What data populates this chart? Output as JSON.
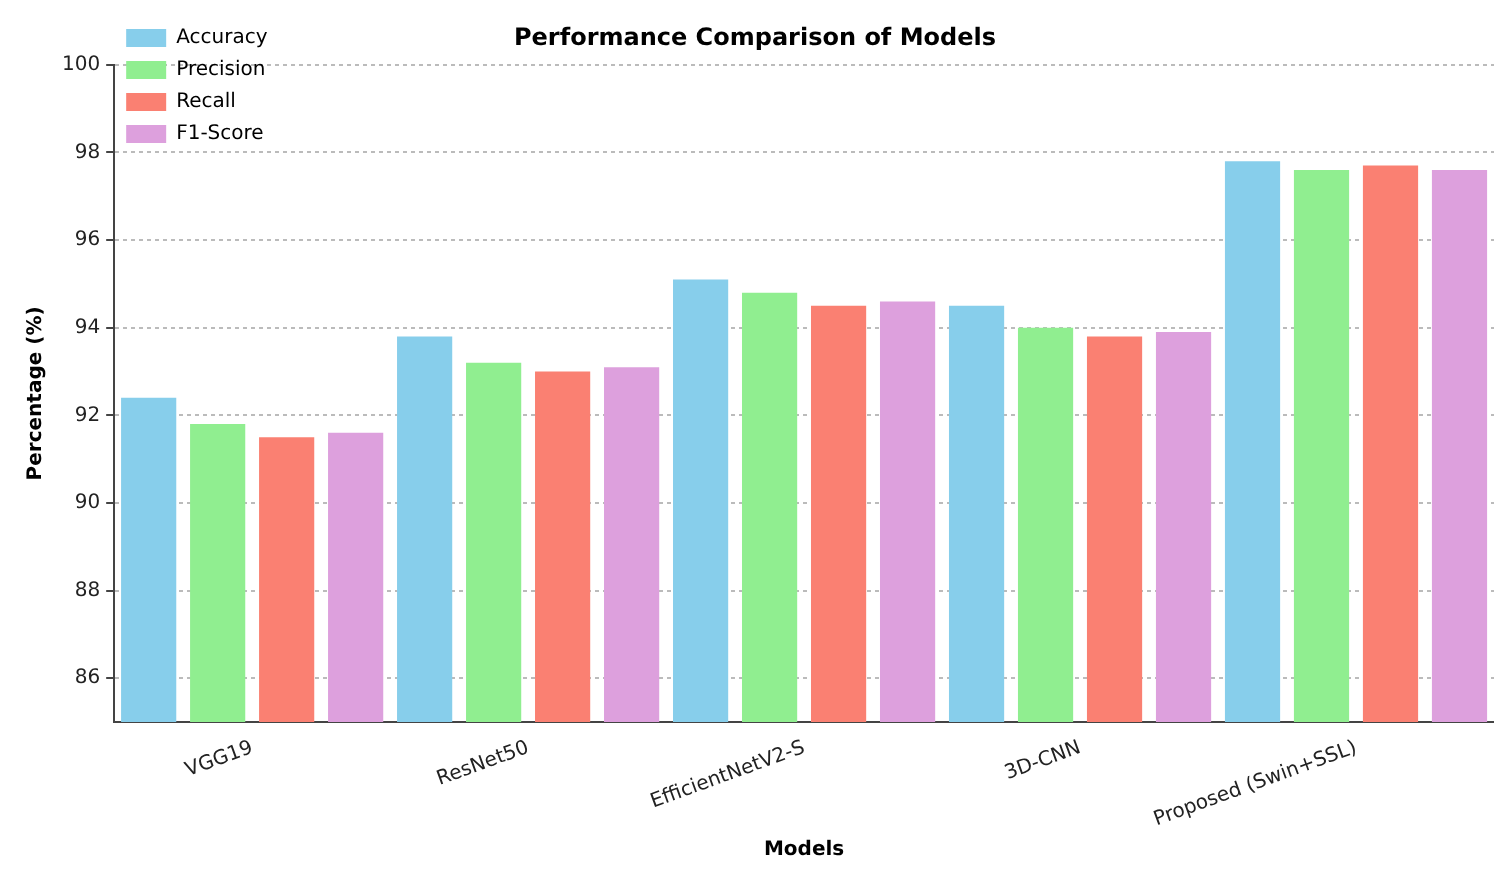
{
  "chart_data": {
    "type": "bar",
    "title": "Performance Comparison of Models",
    "xlabel": "Models",
    "ylabel": "Percentage (%)",
    "categories": [
      "VGG19",
      "ResNet50",
      "EfficientNetV2-S",
      "3D-CNN",
      "Proposed (Swin+SSL)"
    ],
    "series": [
      {
        "name": "Accuracy",
        "color": "#87ceeb",
        "values": [
          92.4,
          93.8,
          95.1,
          94.5,
          97.8
        ]
      },
      {
        "name": "Precision",
        "color": "#90ee90",
        "values": [
          91.8,
          93.2,
          94.8,
          94.0,
          97.6
        ]
      },
      {
        "name": "Recall",
        "color": "#fa8072",
        "values": [
          91.5,
          93.0,
          94.5,
          93.8,
          97.7
        ]
      },
      {
        "name": "F1-Score",
        "color": "#dda0dd",
        "values": [
          91.6,
          93.1,
          94.6,
          93.9,
          97.6
        ]
      }
    ],
    "ylim": [
      85,
      100
    ],
    "yticks": [
      86,
      88,
      90,
      92,
      94,
      96,
      98,
      100
    ],
    "grid": "y",
    "legend": "top left"
  }
}
